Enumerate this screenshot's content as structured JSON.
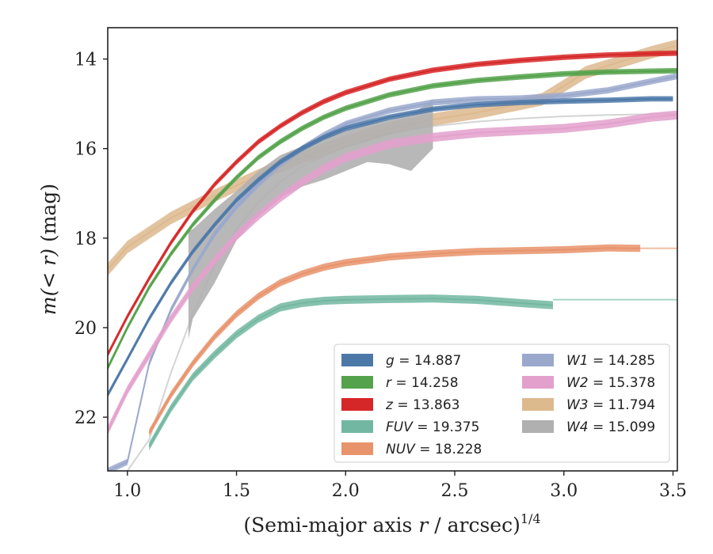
{
  "chart_data": {
    "type": "line",
    "xlabel": "(Semi-major axis r / arcsec)",
    "xlabel_var": "r",
    "xlabel_prefix": "(Semi-major axis ",
    "xlabel_suffix": " / arcsec)",
    "xlabel_exp": "1/4",
    "ylabel": "m(< r) (mag)",
    "ylabel_main": "m",
    "ylabel_inner": "(< r)",
    "ylabel_unit": " (mag)",
    "xlim": [
      0.91,
      3.52
    ],
    "ylim": [
      23.2,
      13.3
    ],
    "y_inverted": true,
    "xticks": [
      1.0,
      1.5,
      2.0,
      2.5,
      3.0,
      3.5
    ],
    "xtick_labels": [
      "1.0",
      "1.5",
      "2.0",
      "2.5",
      "3.0",
      "3.5"
    ],
    "yticks": [
      14,
      16,
      18,
      20,
      22
    ],
    "ytick_labels": [
      "14",
      "16",
      "18",
      "20",
      "22"
    ],
    "grid": false,
    "legend_position": "lower-right",
    "legend_columns": 2,
    "series": [
      {
        "name": "g",
        "label_value": "14.887",
        "color": "#4c78a8",
        "x": [
          0.91,
          1.0,
          1.1,
          1.2,
          1.3,
          1.4,
          1.5,
          1.6,
          1.7,
          1.8,
          1.9,
          2.0,
          2.2,
          2.4,
          2.6,
          2.8,
          3.0,
          3.2,
          3.4,
          3.5
        ],
        "y": [
          21.5,
          20.7,
          19.8,
          19.0,
          18.3,
          17.7,
          17.15,
          16.7,
          16.3,
          16.0,
          15.75,
          15.55,
          15.3,
          15.12,
          15.02,
          14.97,
          14.94,
          14.92,
          14.89,
          14.89
        ],
        "band": 0.06
      },
      {
        "name": "r",
        "label_value": "14.258",
        "color": "#54a24b",
        "x": [
          0.91,
          1.0,
          1.1,
          1.2,
          1.3,
          1.4,
          1.5,
          1.6,
          1.7,
          1.8,
          1.9,
          2.0,
          2.2,
          2.4,
          2.6,
          2.8,
          3.0,
          3.2,
          3.4,
          3.52
        ],
        "y": [
          20.9,
          20.0,
          19.1,
          18.35,
          17.7,
          17.15,
          16.65,
          16.2,
          15.85,
          15.55,
          15.3,
          15.1,
          14.8,
          14.6,
          14.48,
          14.4,
          14.33,
          14.29,
          14.27,
          14.26
        ],
        "band": 0.06
      },
      {
        "name": "z",
        "label_value": "13.863",
        "color": "#d62728",
        "x": [
          0.91,
          1.0,
          1.1,
          1.2,
          1.3,
          1.4,
          1.5,
          1.6,
          1.7,
          1.8,
          1.9,
          2.0,
          2.2,
          2.4,
          2.6,
          2.8,
          3.0,
          3.2,
          3.4,
          3.52
        ],
        "y": [
          20.6,
          19.75,
          18.9,
          18.1,
          17.4,
          16.8,
          16.3,
          15.85,
          15.5,
          15.2,
          14.95,
          14.75,
          14.45,
          14.25,
          14.12,
          14.03,
          13.96,
          13.91,
          13.88,
          13.87
        ],
        "band": 0.06
      },
      {
        "name": "FUV",
        "label_value": "19.375",
        "color": "#72b7a1",
        "x": [
          1.1,
          1.2,
          1.3,
          1.4,
          1.5,
          1.6,
          1.7,
          1.8,
          1.9,
          2.0,
          2.2,
          2.4,
          2.6,
          2.8,
          2.95
        ],
        "y": [
          22.65,
          21.8,
          21.1,
          20.6,
          20.15,
          19.8,
          19.55,
          19.45,
          19.4,
          19.38,
          19.36,
          19.35,
          19.38,
          19.45,
          19.5
        ],
        "band": 0.09,
        "model_x": [
          2.95,
          3.52
        ],
        "model_y": [
          19.375,
          19.375
        ]
      },
      {
        "name": "NUV",
        "label_value": "18.228",
        "color": "#e8936b",
        "x": [
          1.1,
          1.2,
          1.3,
          1.4,
          1.5,
          1.6,
          1.7,
          1.8,
          1.9,
          2.0,
          2.2,
          2.4,
          2.6,
          2.8,
          3.0,
          3.2,
          3.35
        ],
        "y": [
          22.35,
          21.5,
          20.8,
          20.2,
          19.7,
          19.3,
          19.0,
          18.8,
          18.65,
          18.55,
          18.42,
          18.35,
          18.3,
          18.28,
          18.26,
          18.22,
          18.23
        ],
        "band": 0.08,
        "model_x": [
          3.35,
          3.52
        ],
        "model_y": [
          18.228,
          18.228
        ]
      },
      {
        "name": "W1",
        "label_value": "14.285",
        "color": "#9aa8cc",
        "x": [
          0.91,
          1.0,
          1.1,
          1.2,
          1.3,
          1.4,
          1.5,
          1.6,
          1.7,
          1.8,
          1.9,
          2.0,
          2.2,
          2.4,
          2.6,
          2.8,
          3.0,
          3.2,
          3.4,
          3.52
        ],
        "y": [
          23.2,
          23.0,
          20.8,
          19.6,
          18.7,
          17.9,
          17.3,
          16.8,
          16.35,
          16.0,
          15.7,
          15.45,
          15.15,
          14.97,
          14.9,
          14.88,
          14.82,
          14.7,
          14.5,
          14.38
        ],
        "band": 0.07
      },
      {
        "name": "W2",
        "label_value": "15.378",
        "color": "#e3a0cc",
        "x": [
          0.91,
          1.0,
          1.1,
          1.2,
          1.3,
          1.4,
          1.5,
          1.6,
          1.7,
          1.8,
          1.9,
          2.0,
          2.2,
          2.4,
          2.6,
          2.8,
          3.0,
          3.2,
          3.4,
          3.52
        ],
        "y": [
          22.3,
          21.4,
          20.6,
          19.8,
          19.1,
          18.5,
          17.95,
          17.5,
          17.1,
          16.75,
          16.45,
          16.2,
          15.9,
          15.75,
          15.65,
          15.6,
          15.55,
          15.45,
          15.3,
          15.25
        ],
        "band": 0.1
      },
      {
        "name": "W3",
        "label_value": "11.794",
        "color": "#ddb98e",
        "x": [
          0.91,
          1.0,
          1.2,
          1.4,
          1.6,
          1.8,
          2.0,
          2.2,
          2.4,
          2.6,
          2.7,
          2.8,
          2.9,
          3.0,
          3.1,
          3.2,
          3.3,
          3.4,
          3.52
        ],
        "y": [
          18.7,
          18.2,
          17.55,
          17.05,
          16.6,
          16.2,
          15.85,
          15.55,
          15.35,
          15.2,
          15.1,
          15.0,
          14.9,
          14.6,
          14.3,
          14.15,
          14.0,
          13.85,
          13.7
        ],
        "band": 0.14
      },
      {
        "name": "W4",
        "label_value": "15.099",
        "color": "#b0b0b0",
        "x": [
          1.28,
          1.3,
          1.4,
          1.5,
          1.6,
          1.7,
          1.8,
          1.9,
          2.0,
          2.1,
          2.2,
          2.3,
          2.4
        ],
        "y_upper": [
          17.85,
          17.8,
          17.35,
          16.95,
          16.5,
          16.15,
          15.95,
          15.75,
          15.6,
          15.45,
          15.35,
          15.25,
          14.9
        ],
        "y_lower": [
          20.25,
          19.8,
          19.0,
          18.05,
          17.5,
          17.1,
          16.85,
          16.7,
          16.5,
          16.3,
          16.35,
          16.5,
          16.0
        ],
        "model_x": [
          1.0,
          1.1,
          1.2,
          1.3,
          1.4,
          1.5,
          1.6,
          1.7,
          1.8,
          2.0,
          2.2,
          2.4,
          2.6,
          2.8,
          3.0,
          3.2,
          3.4,
          3.52
        ],
        "model_y": [
          23.2,
          22.5,
          21.0,
          19.7,
          18.6,
          17.8,
          17.2,
          16.75,
          16.4,
          15.95,
          15.65,
          15.5,
          15.4,
          15.33,
          15.28,
          15.25,
          15.23,
          15.22
        ]
      }
    ]
  }
}
